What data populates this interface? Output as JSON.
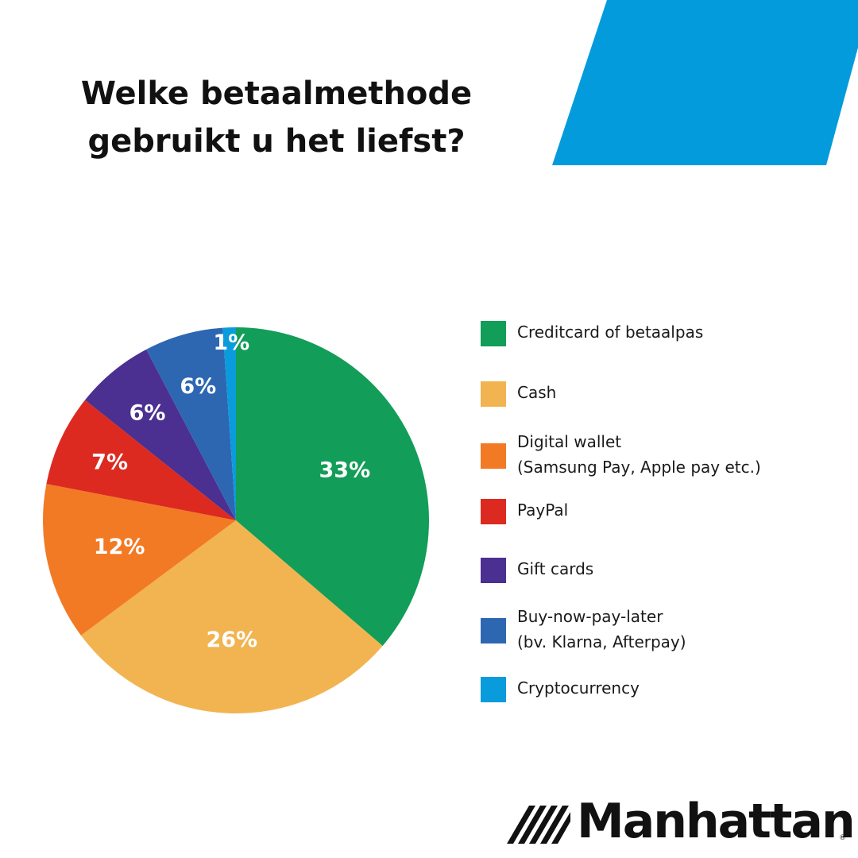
{
  "title_lines": [
    "Welke betaalmethode",
    "gebruikt u het liefst?"
  ],
  "colors": {
    "accent": "#049BDC",
    "text": "#111111"
  },
  "brand": {
    "name": "Manhattan",
    "registered_mark": "®",
    "logo_icon": "stripes-logo-icon"
  },
  "chart_data": {
    "type": "pie",
    "title": "Welke betaalmethode gebruikt u het liefst?",
    "legend_position": "right",
    "slices": [
      {
        "label": "Creditcard of betaalpas",
        "label_lines": [
          "Creditcard of betaalpas"
        ],
        "value": 33,
        "display": "33%",
        "color": "#129D58"
      },
      {
        "label": "Cash",
        "label_lines": [
          "Cash"
        ],
        "value": 26,
        "display": "26%",
        "color": "#F2B450"
      },
      {
        "label": "Digital wallet (Samsung Pay, Apple pay etc.)",
        "label_lines": [
          "Digital wallet",
          "(Samsung Pay, Apple pay etc.)"
        ],
        "value": 12,
        "display": "12%",
        "color": "#F27A24"
      },
      {
        "label": "PayPal",
        "label_lines": [
          "PayPal"
        ],
        "value": 7,
        "display": "7%",
        "color": "#DC2A20"
      },
      {
        "label": "Gift cards",
        "label_lines": [
          "Gift cards"
        ],
        "value": 6,
        "display": "6%",
        "color": "#4B2F91"
      },
      {
        "label": "Buy-now-pay-later (bv. Klarna, Afterpay)",
        "label_lines": [
          "Buy-now-pay-later",
          "(bv. Klarna, Afterpay)"
        ],
        "value": 6,
        "display": "6%",
        "color": "#2D67B2"
      },
      {
        "label": "Cryptocurrency",
        "label_lines": [
          "Cryptocurrency"
        ],
        "value": 1,
        "display": "1%",
        "color": "#0A9BDC"
      }
    ]
  }
}
